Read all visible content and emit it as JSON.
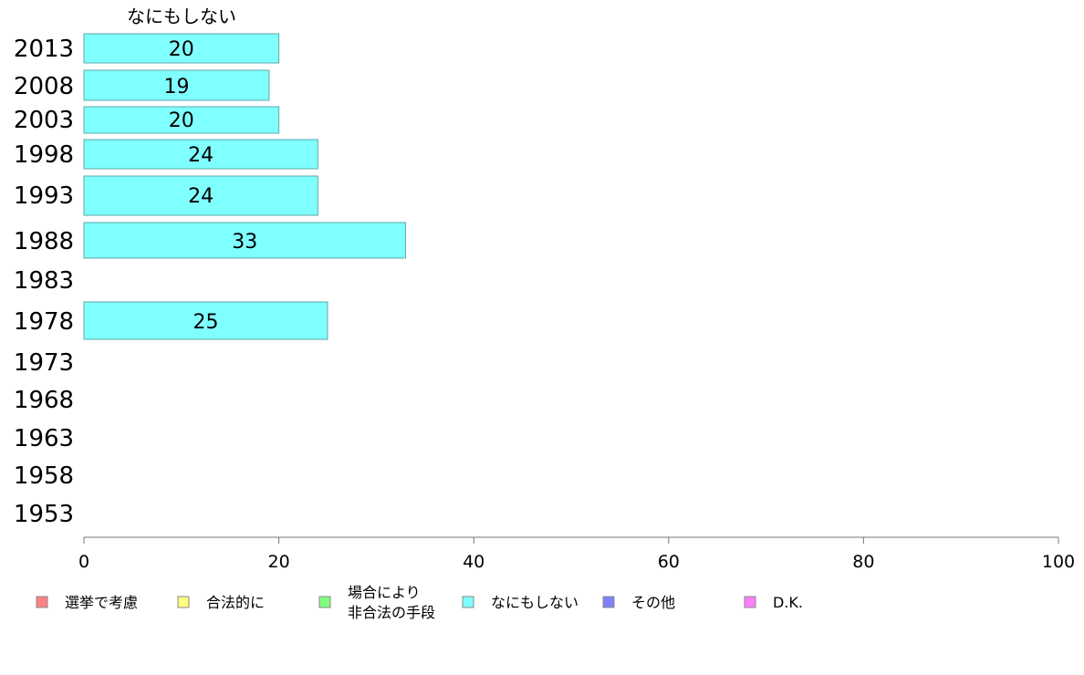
{
  "chart_data": {
    "type": "bar",
    "orientation": "horizontal",
    "title": "なにもしない",
    "xlim": [
      0,
      100
    ],
    "x_ticks": [
      "0",
      "20",
      "40",
      "60",
      "80",
      "100"
    ],
    "categories": [
      "2013",
      "2008",
      "2003",
      "1998",
      "1993",
      "1988",
      "1983",
      "1978",
      "1973",
      "1968",
      "1963",
      "1958",
      "1953"
    ],
    "series": [
      {
        "name": "なにもしない",
        "color": "#80ffff",
        "values": [
          20,
          19,
          20,
          24,
          24,
          33,
          null,
          25,
          null,
          null,
          null,
          null,
          null
        ],
        "labels": [
          "20",
          "19",
          "20",
          "24",
          "24",
          "33",
          "",
          "25",
          "",
          "",
          "",
          "",
          ""
        ]
      }
    ],
    "legend": {
      "placement": "bottom",
      "items": [
        {
          "label": "選挙で考慮",
          "color": "#ff8080"
        },
        {
          "label": "合法的に",
          "color": "#ffff80"
        },
        {
          "label": "場合により\n非合法の手段",
          "color": "#80ff80"
        },
        {
          "label": "なにもしない",
          "color": "#80ffff"
        },
        {
          "label": "その他",
          "color": "#8080ff"
        },
        {
          "label": "D.K.",
          "color": "#ff80ff"
        }
      ]
    },
    "grid": false
  }
}
